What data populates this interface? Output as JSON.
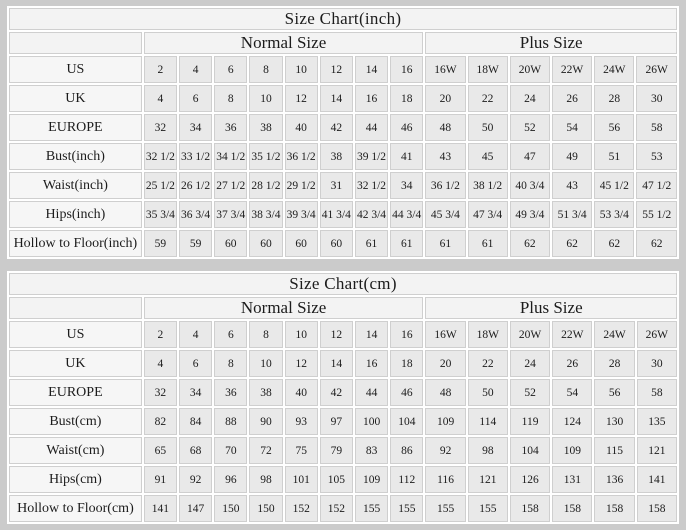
{
  "colors": {
    "page_background": "#cbcbcb",
    "gutter": "#ffffff",
    "header_cell_background": "#f3f3f3",
    "label_cell_background": "#f6f6f6",
    "value_cell_background": "#e9e9e9",
    "cell_border": "#cfcfcf",
    "text": "#1c1c1c"
  },
  "chart_data": [
    {
      "type": "table",
      "title": "Size Chart(inch)",
      "column_groups": [
        {
          "label": "Normal Size",
          "span": 8
        },
        {
          "label": "Plus Size",
          "span": 6
        }
      ],
      "rows": [
        {
          "label": "US",
          "values": [
            "2",
            "4",
            "6",
            "8",
            "10",
            "12",
            "14",
            "16",
            "16W",
            "18W",
            "20W",
            "22W",
            "24W",
            "26W"
          ]
        },
        {
          "label": "UK",
          "values": [
            "4",
            "6",
            "8",
            "10",
            "12",
            "14",
            "16",
            "18",
            "20",
            "22",
            "24",
            "26",
            "28",
            "30"
          ]
        },
        {
          "label": "EUROPE",
          "values": [
            "32",
            "34",
            "36",
            "38",
            "40",
            "42",
            "44",
            "46",
            "48",
            "50",
            "52",
            "54",
            "56",
            "58"
          ]
        },
        {
          "label": "Bust(inch)",
          "values": [
            "32 1/2",
            "33 1/2",
            "34 1/2",
            "35 1/2",
            "36 1/2",
            "38",
            "39 1/2",
            "41",
            "43",
            "45",
            "47",
            "49",
            "51",
            "53"
          ]
        },
        {
          "label": "Waist(inch)",
          "values": [
            "25 1/2",
            "26 1/2",
            "27 1/2",
            "28 1/2",
            "29 1/2",
            "31",
            "32 1/2",
            "34",
            "36 1/2",
            "38 1/2",
            "40 3/4",
            "43",
            "45 1/2",
            "47 1/2"
          ]
        },
        {
          "label": "Hips(inch)",
          "values": [
            "35 3/4",
            "36 3/4",
            "37 3/4",
            "38 3/4",
            "39 3/4",
            "41 3/4",
            "42 3/4",
            "44 3/4",
            "45 3/4",
            "47 3/4",
            "49 3/4",
            "51 3/4",
            "53 3/4",
            "55 1/2"
          ]
        },
        {
          "label": "Hollow to Floor(inch)",
          "values": [
            "59",
            "59",
            "60",
            "60",
            "60",
            "60",
            "61",
            "61",
            "61",
            "61",
            "62",
            "62",
            "62",
            "62"
          ]
        }
      ]
    },
    {
      "type": "table",
      "title": "Size Chart(cm)",
      "column_groups": [
        {
          "label": "Normal Size",
          "span": 8
        },
        {
          "label": "Plus Size",
          "span": 6
        }
      ],
      "rows": [
        {
          "label": "US",
          "values": [
            "2",
            "4",
            "6",
            "8",
            "10",
            "12",
            "14",
            "16",
            "16W",
            "18W",
            "20W",
            "22W",
            "24W",
            "26W"
          ]
        },
        {
          "label": "UK",
          "values": [
            "4",
            "6",
            "8",
            "10",
            "12",
            "14",
            "16",
            "18",
            "20",
            "22",
            "24",
            "26",
            "28",
            "30"
          ]
        },
        {
          "label": "EUROPE",
          "values": [
            "32",
            "34",
            "36",
            "38",
            "40",
            "42",
            "44",
            "46",
            "48",
            "50",
            "52",
            "54",
            "56",
            "58"
          ]
        },
        {
          "label": "Bust(cm)",
          "values": [
            "82",
            "84",
            "88",
            "90",
            "93",
            "97",
            "100",
            "104",
            "109",
            "114",
            "119",
            "124",
            "130",
            "135"
          ]
        },
        {
          "label": "Waist(cm)",
          "values": [
            "65",
            "68",
            "70",
            "72",
            "75",
            "79",
            "83",
            "86",
            "92",
            "98",
            "104",
            "109",
            "115",
            "121"
          ]
        },
        {
          "label": "Hips(cm)",
          "values": [
            "91",
            "92",
            "96",
            "98",
            "101",
            "105",
            "109",
            "112",
            "116",
            "121",
            "126",
            "131",
            "136",
            "141"
          ]
        },
        {
          "label": "Hollow to Floor(cm)",
          "values": [
            "141",
            "147",
            "150",
            "150",
            "152",
            "152",
            "155",
            "155",
            "155",
            "155",
            "158",
            "158",
            "158",
            "158"
          ]
        }
      ]
    }
  ]
}
